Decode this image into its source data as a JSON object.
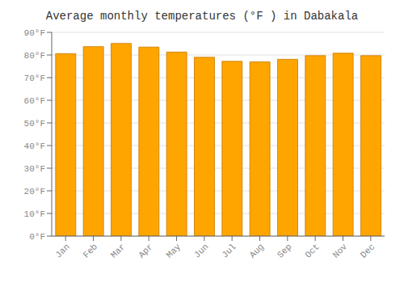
{
  "chart_data": {
    "type": "bar",
    "title": "Average monthly temperatures (°F ) in Dabakala",
    "categories": [
      "Jan",
      "Feb",
      "Mar",
      "Apr",
      "May",
      "Jun",
      "Jul",
      "Aug",
      "Sep",
      "Oct",
      "Nov",
      "Dec"
    ],
    "values": [
      80.6,
      83.7,
      85.1,
      83.5,
      81.3,
      79.0,
      77.2,
      77.0,
      78.1,
      79.7,
      80.8,
      79.7
    ],
    "color": "#FFA500",
    "ylim": [
      0,
      90
    ],
    "yticks": [
      {
        "value": 0,
        "label": "0°F"
      },
      {
        "value": 10,
        "label": "10°F"
      },
      {
        "value": 20,
        "label": "20°F"
      },
      {
        "value": 30,
        "label": "30°F"
      },
      {
        "value": 40,
        "label": "40°F"
      },
      {
        "value": 50,
        "label": "50°F"
      },
      {
        "value": 60,
        "label": "60°F"
      },
      {
        "value": 70,
        "label": "70°F"
      },
      {
        "value": 80,
        "label": "80°F"
      },
      {
        "value": 90,
        "label": "90°F"
      }
    ],
    "grid": true
  }
}
